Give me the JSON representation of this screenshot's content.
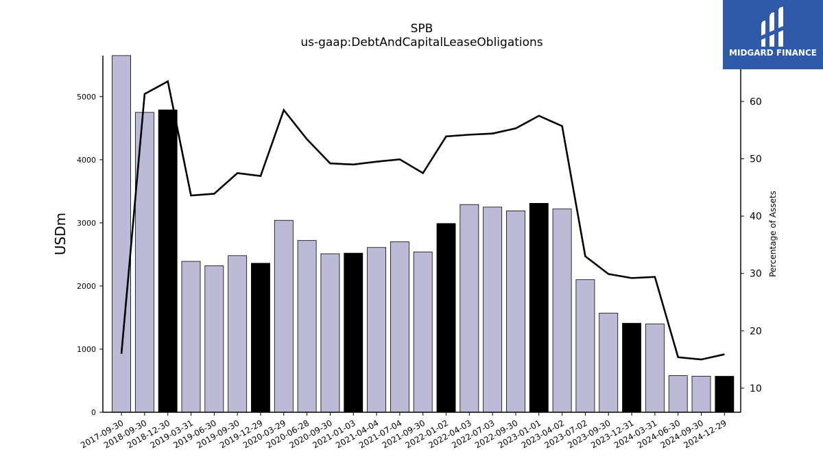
{
  "brand": {
    "name": "MIDGARD FINANCE",
    "bg_color": "#2f5aa8"
  },
  "chart_data": {
    "type": "bar",
    "title": "SPB",
    "subtitle": "us-gaap:DebtAndCapitalLeaseObligations",
    "ylabel": "USDm",
    "ylabel_right": "Percentage of Assets",
    "ylim": [
      0,
      5650
    ],
    "ylim_right": [
      5.8,
      68
    ],
    "yticks": [
      0,
      1000,
      2000,
      3000,
      4000,
      5000
    ],
    "yticks_right": [
      10,
      20,
      30,
      40,
      50,
      60
    ],
    "grid": false,
    "categories": [
      "2017-09-30",
      "2018-09-30",
      "2018-12-30",
      "2019-03-31",
      "2019-06-30",
      "2019-09-30",
      "2019-12-29",
      "2020-03-29",
      "2020-06-28",
      "2020-09-30",
      "2021-01-03",
      "2021-04-04",
      "2021-07-04",
      "2021-09-30",
      "2022-01-02",
      "2022-04-03",
      "2022-07-03",
      "2022-09-30",
      "2023-01-01",
      "2023-04-02",
      "2023-07-02",
      "2023-09-30",
      "2023-12-31",
      "2024-03-31",
      "2024-06-30",
      "2024-09-30",
      "2024-12-29"
    ],
    "series": [
      {
        "values": [
          5650,
          4750,
          4790,
          2390,
          2320,
          2480,
          2360,
          3040,
          2720,
          2510,
          2520,
          2610,
          2700,
          2540,
          2990,
          3290,
          3250,
          3190,
          3310,
          3220,
          2100,
          1570,
          1410,
          1400,
          580,
          570,
          570
        ],
        "highlight": [
          false,
          false,
          true,
          false,
          false,
          false,
          true,
          false,
          false,
          false,
          true,
          false,
          false,
          false,
          true,
          false,
          false,
          false,
          true,
          false,
          false,
          false,
          true,
          false,
          false,
          false,
          true
        ]
      },
      {
        "axis": "right",
        "values": [
          16.0,
          61.3,
          63.5,
          43.6,
          43.9,
          47.5,
          47.0,
          58.5,
          53.4,
          49.2,
          49.0,
          49.5,
          49.9,
          47.5,
          53.9,
          54.2,
          54.4,
          55.3,
          57.5,
          55.7,
          33.0,
          29.9,
          29.2,
          29.4,
          15.4,
          15.0,
          15.9
        ]
      }
    ],
    "colors": {
      "bar": "#bdbad8",
      "bar_highlight": "#000000",
      "line": "#000000"
    }
  }
}
